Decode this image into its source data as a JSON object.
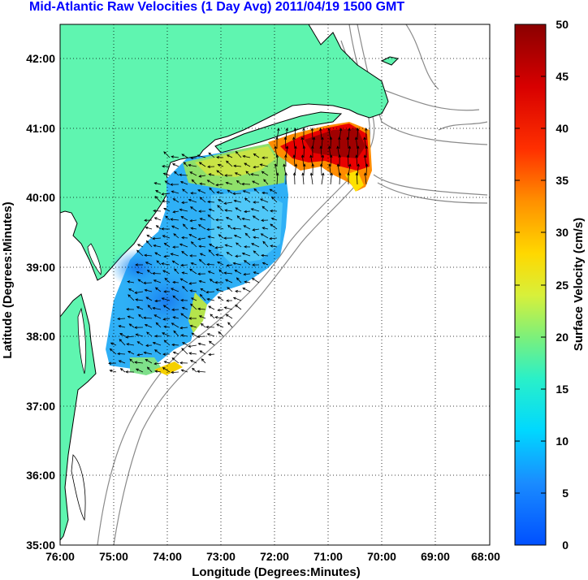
{
  "title": "Mid-Atlantic Raw Velocities (1 Day Avg) 2011/04/19 1500 GMT",
  "map": {
    "xlabel": "Longitude (Degrees:Minutes)",
    "ylabel": "Latitude (Degrees:Minutes)",
    "lon_ticks": [
      "76:00",
      "75:00",
      "74:00",
      "73:00",
      "72:00",
      "71:00",
      "70:00",
      "69:00",
      "68:00"
    ],
    "lat_ticks": [
      "35:00",
      "36:00",
      "37:00",
      "38:00",
      "39:00",
      "40:00",
      "41:00",
      "42:00"
    ],
    "lon_range": [
      -76,
      -68
    ],
    "lat_range": [
      35,
      42.5
    ],
    "land_color": "#5ff5b0",
    "grid": "dotted"
  },
  "colorbar": {
    "label": "Surface Velocity (cm/s)",
    "ticks": [
      "0",
      "5",
      "10",
      "15",
      "20",
      "25",
      "30",
      "35",
      "40",
      "45",
      "50"
    ],
    "range": [
      0,
      50
    ],
    "colormap": "jet"
  }
}
